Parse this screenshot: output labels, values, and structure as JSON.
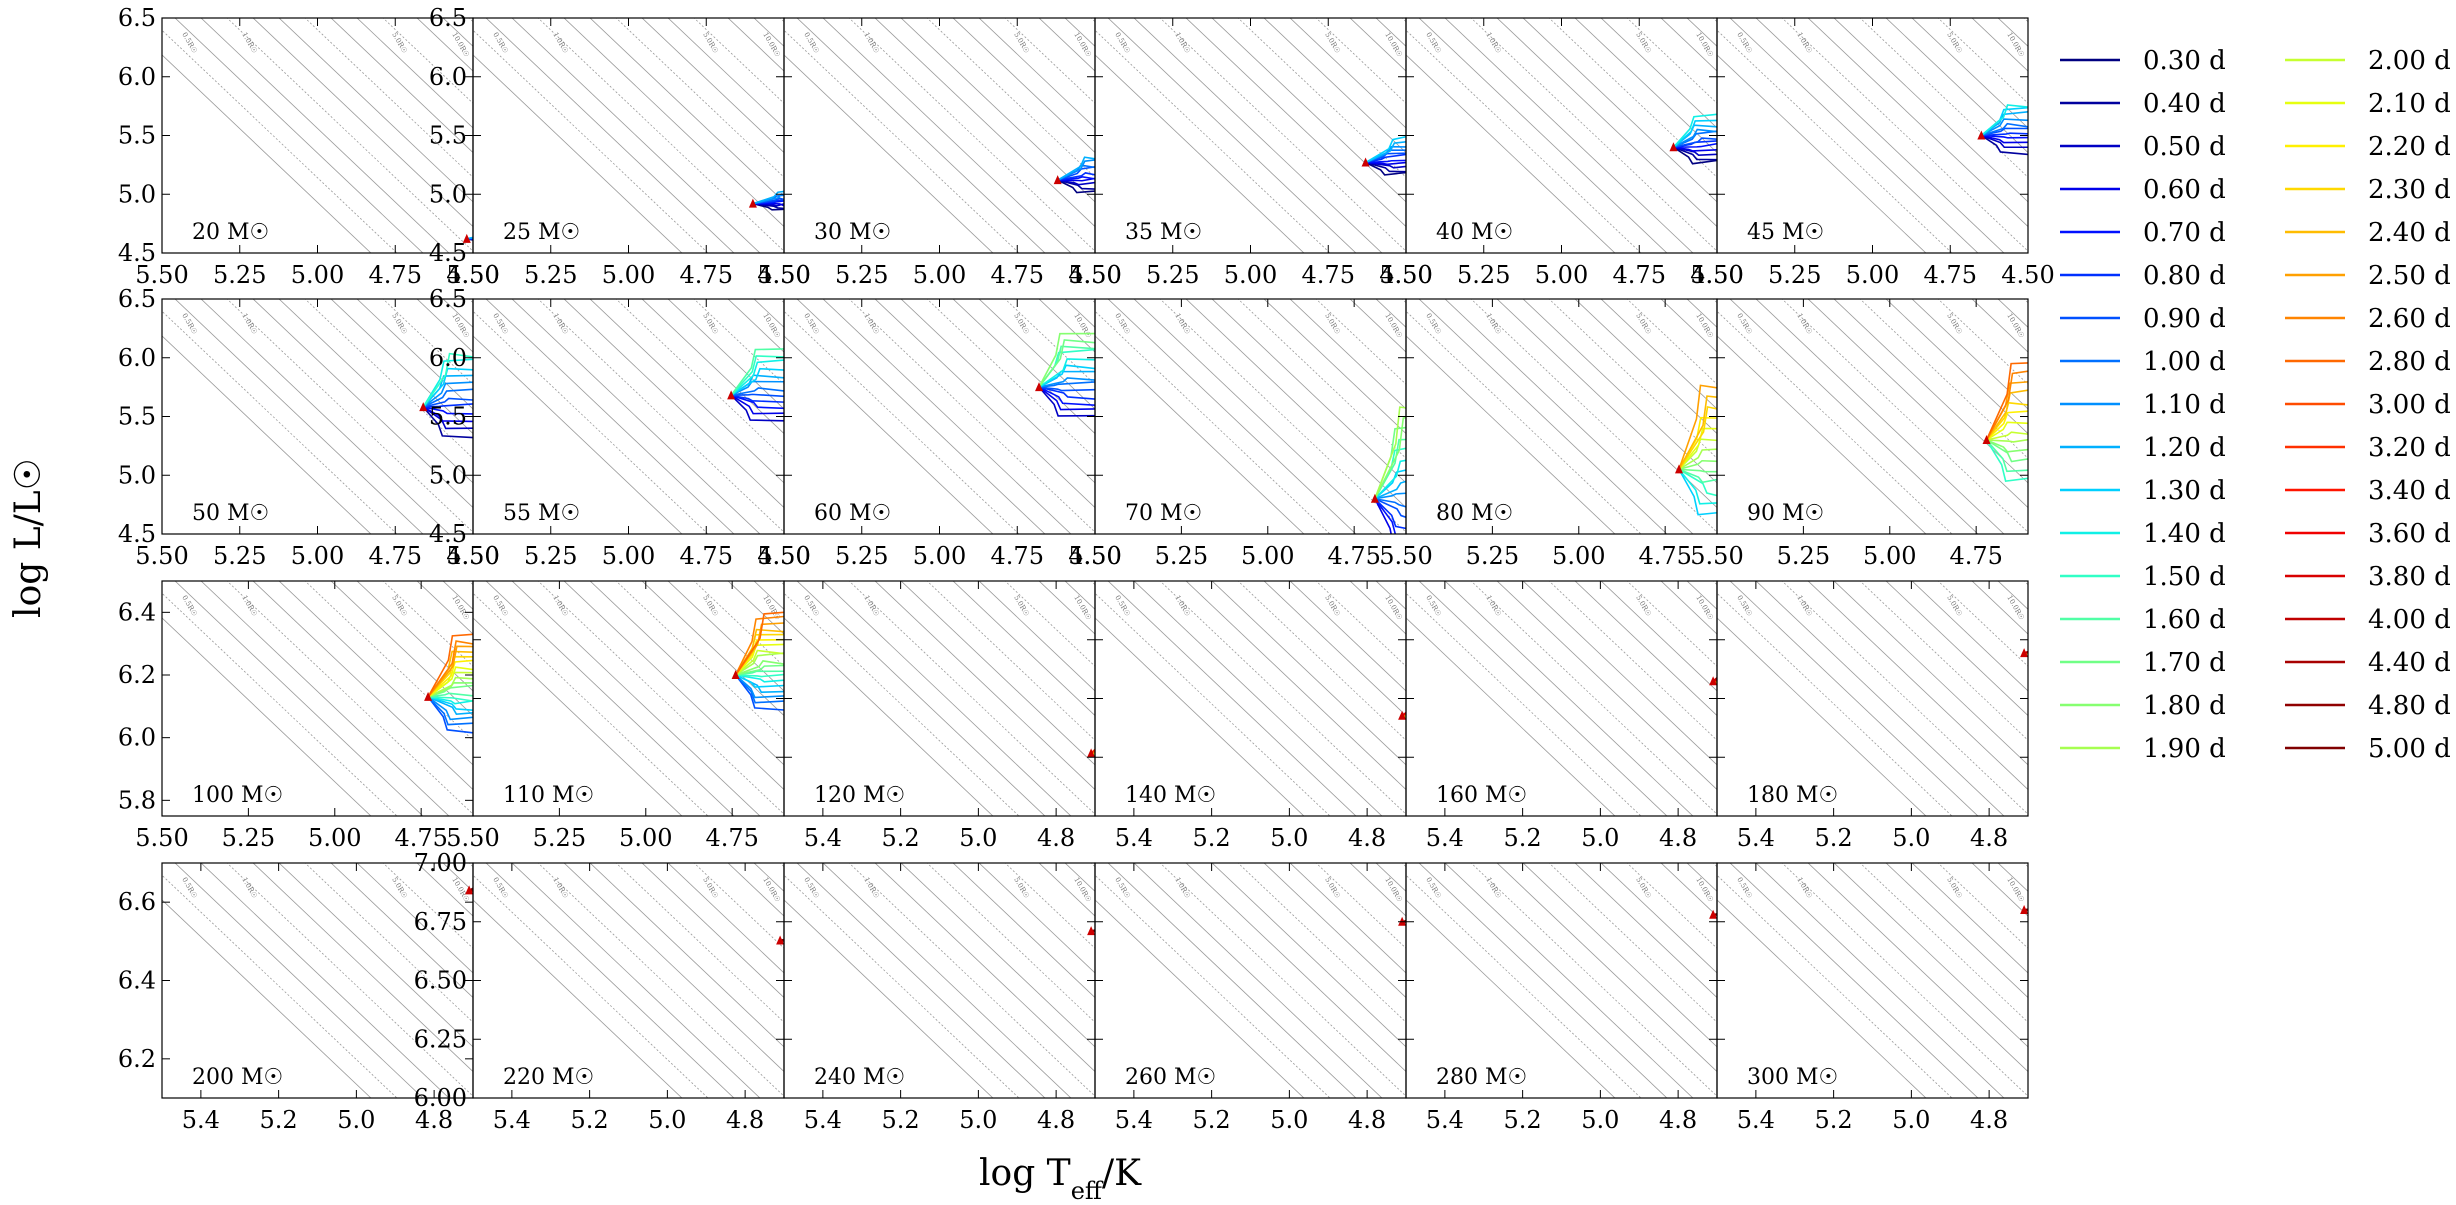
{
  "figure": {
    "xlabel": "log T_eff/K",
    "ylabel": "log L/L☉"
  },
  "chart_data": {
    "type": "line",
    "xlabel": "log T_eff/K",
    "ylabel": "log L/L☉",
    "x_inverted": true,
    "grid": false,
    "legend_placement": "right",
    "legend": [
      "0.30 d",
      "0.40 d",
      "0.50 d",
      "0.60 d",
      "0.70 d",
      "0.80 d",
      "0.90 d",
      "1.00 d",
      "1.10 d",
      "1.20 d",
      "1.30 d",
      "1.40 d",
      "1.50 d",
      "1.60 d",
      "1.70 d",
      "1.80 d",
      "1.90 d",
      "2.00 d",
      "2.10 d",
      "2.20 d",
      "2.30 d",
      "2.40 d",
      "2.50 d",
      "2.60 d",
      "2.80 d",
      "3.00 d",
      "3.20 d",
      "3.40 d",
      "3.60 d",
      "3.80 d",
      "4.00 d",
      "4.40 d",
      "4.80 d",
      "5.00 d"
    ],
    "legend_colors": [
      "#000080",
      "#00009e",
      "#0000c4",
      "#0000ea",
      "#0010ff",
      "#0030ff",
      "#0050ff",
      "#0070ff",
      "#0090ff",
      "#00b0ff",
      "#00d0ff",
      "#10f0e6",
      "#30ffc6",
      "#50ffa6",
      "#70ff86",
      "#86ff70",
      "#a6ff50",
      "#c6ff30",
      "#e6ff10",
      "#fff000",
      "#ffd800",
      "#ffbc00",
      "#ffa000",
      "#ff8400",
      "#ff6800",
      "#ff4c00",
      "#ff3000",
      "#ff1400",
      "#f00000",
      "#d80000",
      "#c00000",
      "#a80000",
      "#900000",
      "#800000"
    ],
    "panels": [
      {
        "mass": "20 M☉",
        "xlim": [
          5.5,
          4.5
        ],
        "ylim": [
          4.5,
          6.5
        ],
        "xticks": [
          "5.50",
          "5.25",
          "5.00",
          "4.75",
          "4.50"
        ],
        "yticks": [
          "4.5",
          "5.0",
          "5.5",
          "6.0",
          "6.5"
        ],
        "zams": [
          4.52,
          4.62
        ],
        "spread": 0.1,
        "band": [
          0,
          9
        ]
      },
      {
        "mass": "25 M☉",
        "xlim": [
          5.5,
          4.5
        ],
        "ylim": [
          4.5,
          6.5
        ],
        "xticks": [
          "5.50",
          "5.25",
          "5.00",
          "4.75",
          "4.50"
        ],
        "yticks": [
          "4.5",
          "5.0",
          "5.5",
          "6.0",
          "6.5"
        ],
        "zams": [
          4.6,
          4.92
        ],
        "spread": 0.15,
        "band": [
          0,
          9
        ]
      },
      {
        "mass": "30 M☉",
        "xlim": [
          5.5,
          4.5
        ],
        "ylim": [
          4.5,
          6.5
        ],
        "xticks": [
          "5.50",
          "5.25",
          "5.00",
          "4.75",
          "4.50"
        ],
        "yticks": [],
        "zams": [
          4.62,
          5.12
        ],
        "spread": 0.3,
        "band": [
          0,
          9
        ]
      },
      {
        "mass": "35 M☉",
        "xlim": [
          5.5,
          4.5
        ],
        "ylim": [
          4.5,
          6.5
        ],
        "xticks": [
          "5.50",
          "5.25",
          "5.00",
          "4.75",
          "4.50"
        ],
        "yticks": [],
        "zams": [
          4.63,
          5.27
        ],
        "spread": 0.3,
        "band": [
          0,
          10
        ]
      },
      {
        "mass": "40 M☉",
        "xlim": [
          5.5,
          4.5
        ],
        "ylim": [
          4.5,
          6.5
        ],
        "xticks": [
          "5.50",
          "5.25",
          "5.00",
          "4.75",
          "4.50"
        ],
        "yticks": [],
        "zams": [
          4.64,
          5.4
        ],
        "spread": 0.4,
        "band": [
          0,
          11
        ]
      },
      {
        "mass": "45 M☉",
        "xlim": [
          5.5,
          4.5
        ],
        "ylim": [
          4.5,
          6.5
        ],
        "xticks": [
          "5.50",
          "5.25",
          "5.00",
          "4.75",
          "4.50"
        ],
        "yticks": [],
        "zams": [
          4.65,
          5.5
        ],
        "spread": 0.4,
        "band": [
          1,
          11
        ]
      },
      {
        "mass": "50 M☉",
        "xlim": [
          5.5,
          4.5
        ],
        "ylim": [
          4.5,
          6.5
        ],
        "xticks": [
          "5.50",
          "5.25",
          "5.00",
          "4.75",
          "4.50"
        ],
        "yticks": [
          "4.5",
          "5.0",
          "5.5",
          "6.0",
          "6.5"
        ],
        "zams": [
          4.66,
          5.58
        ],
        "spread": 0.7,
        "band": [
          1,
          12
        ]
      },
      {
        "mass": "55 M☉",
        "xlim": [
          5.5,
          4.5
        ],
        "ylim": [
          4.5,
          6.5
        ],
        "xticks": [
          "5.50",
          "5.25",
          "5.00",
          "4.75",
          "4.50"
        ],
        "yticks": [
          "4.5",
          "5.0",
          "5.5",
          "6.0",
          "6.5"
        ],
        "zams": [
          4.67,
          5.68
        ],
        "spread": 0.6,
        "band": [
          2,
          13
        ]
      },
      {
        "mass": "60 M☉",
        "xlim": [
          5.5,
          4.5
        ],
        "ylim": [
          4.5,
          6.5
        ],
        "xticks": [
          "5.50",
          "5.25",
          "5.00",
          "4.75",
          "4.50"
        ],
        "yticks": [],
        "zams": [
          4.68,
          5.75
        ],
        "spread": 0.7,
        "band": [
          2,
          15
        ]
      },
      {
        "mass": "70 M☉",
        "xlim": [
          5.5,
          4.6
        ],
        "ylim": [
          4.5,
          6.5
        ],
        "xticks": [
          "5.50",
          "5.25",
          "5.00",
          "4.75"
        ],
        "yticks": [],
        "zams": [
          4.69,
          4.8
        ],
        "spread": 1.2,
        "band": [
          3,
          16
        ]
      },
      {
        "mass": "80 M☉",
        "xlim": [
          5.5,
          4.6
        ],
        "ylim": [
          4.5,
          6.5
        ],
        "xticks": [
          "5.50",
          "5.25",
          "5.00",
          "4.75"
        ],
        "yticks": [],
        "zams": [
          4.71,
          5.05
        ],
        "spread": 1.1,
        "band": [
          10,
          22
        ]
      },
      {
        "mass": "90 M☉",
        "xlim": [
          5.5,
          4.6
        ],
        "ylim": [
          4.5,
          6.5
        ],
        "xticks": [
          "5.50",
          "5.25",
          "5.00",
          "4.75"
        ],
        "yticks": [],
        "zams": [
          4.72,
          5.3
        ],
        "spread": 1.0,
        "band": [
          12,
          24
        ]
      },
      {
        "mass": "100 M☉",
        "xlim": [
          5.5,
          4.6
        ],
        "ylim": [
          5.75,
          6.5
        ],
        "xticks": [
          "5.50",
          "5.25",
          "5.00",
          "4.75"
        ],
        "yticks": [
          "5.8",
          "6.0",
          "6.2",
          "6.4"
        ],
        "zams": [
          4.73,
          6.13
        ],
        "spread": 0.3,
        "band": [
          6,
          24
        ]
      },
      {
        "mass": "110 M☉",
        "xlim": [
          5.5,
          4.6
        ],
        "ylim": [
          5.75,
          6.5
        ],
        "xticks": [
          "5.50",
          "5.25",
          "5.00",
          "4.75"
        ],
        "yticks": [],
        "zams": [
          4.74,
          6.2
        ],
        "spread": 0.3,
        "band": [
          6,
          24
        ]
      },
      {
        "mass": "120 M☉",
        "xlim": [
          5.5,
          4.7
        ],
        "ylim": [
          5.75,
          6.5
        ],
        "xticks": [
          "5.4",
          "5.2",
          "5.0",
          "4.8"
        ],
        "yticks": [],
        "zams": [
          4.71,
          5.95
        ],
        "spread": 0.15,
        "band": [
          14,
          26
        ]
      },
      {
        "mass": "140 M☉",
        "xlim": [
          5.5,
          4.7
        ],
        "ylim": [
          5.75,
          6.5
        ],
        "xticks": [
          "5.4",
          "5.2",
          "5.0",
          "4.8"
        ],
        "yticks": [],
        "zams": [
          4.71,
          6.07
        ],
        "spread": 0.15,
        "band": [
          16,
          28
        ]
      },
      {
        "mass": "160 M☉",
        "xlim": [
          5.5,
          4.7
        ],
        "ylim": [
          5.75,
          6.5
        ],
        "xticks": [
          "5.4",
          "5.2",
          "5.0",
          "4.8"
        ],
        "yticks": [],
        "zams": [
          4.71,
          6.18
        ],
        "spread": 0.12,
        "band": [
          18,
          30
        ]
      },
      {
        "mass": "180 M☉",
        "xlim": [
          5.5,
          4.7
        ],
        "ylim": [
          5.75,
          6.5
        ],
        "xticks": [
          "5.4",
          "5.2",
          "5.0",
          "4.8"
        ],
        "yticks": [],
        "zams": [
          4.71,
          6.27
        ],
        "spread": 0.06,
        "band": [
          18,
          30
        ]
      },
      {
        "mass": "200 M☉",
        "xlim": [
          5.5,
          4.7
        ],
        "ylim": [
          6.1,
          6.7
        ],
        "xticks": [
          "5.4",
          "5.2",
          "5.0",
          "4.8"
        ],
        "yticks": [
          "6.2",
          "6.4",
          "6.6"
        ],
        "zams": [
          4.71,
          6.63
        ],
        "spread": 0.06,
        "band": [
          26,
          33
        ]
      },
      {
        "mass": "220 M☉",
        "xlim": [
          5.5,
          4.7
        ],
        "ylim": [
          6.0,
          7.0
        ],
        "xticks": [
          "5.4",
          "5.2",
          "5.0",
          "4.8"
        ],
        "yticks": [
          "6.00",
          "6.25",
          "6.50",
          "6.75",
          "7.00"
        ],
        "zams": [
          4.71,
          6.67
        ],
        "spread": 0.05,
        "band": [
          26,
          33
        ]
      },
      {
        "mass": "240 M☉",
        "xlim": [
          5.5,
          4.7
        ],
        "ylim": [
          6.0,
          7.0
        ],
        "xticks": [
          "5.4",
          "5.2",
          "5.0",
          "4.8"
        ],
        "yticks": [],
        "zams": [
          4.71,
          6.71
        ],
        "spread": 0.05,
        "band": [
          26,
          33
        ]
      },
      {
        "mass": "260 M☉",
        "xlim": [
          5.5,
          4.7
        ],
        "ylim": [
          6.0,
          7.0
        ],
        "xticks": [
          "5.4",
          "5.2",
          "5.0",
          "4.8"
        ],
        "yticks": [],
        "zams": [
          4.71,
          6.75
        ],
        "spread": 0.05,
        "band": [
          26,
          33
        ]
      },
      {
        "mass": "280 M☉",
        "xlim": [
          5.5,
          4.7
        ],
        "ylim": [
          6.0,
          7.0
        ],
        "xticks": [
          "5.4",
          "5.2",
          "5.0",
          "4.8"
        ],
        "yticks": [],
        "zams": [
          4.71,
          6.78
        ],
        "spread": 0.05,
        "band": [
          26,
          33
        ]
      },
      {
        "mass": "300 M☉",
        "xlim": [
          5.5,
          4.7
        ],
        "ylim": [
          6.0,
          7.0
        ],
        "xticks": [
          "5.4",
          "5.2",
          "5.0",
          "4.8"
        ],
        "yticks": [],
        "zams": [
          4.71,
          6.8
        ],
        "spread": 0.05,
        "band": [
          26,
          33
        ]
      }
    ]
  }
}
